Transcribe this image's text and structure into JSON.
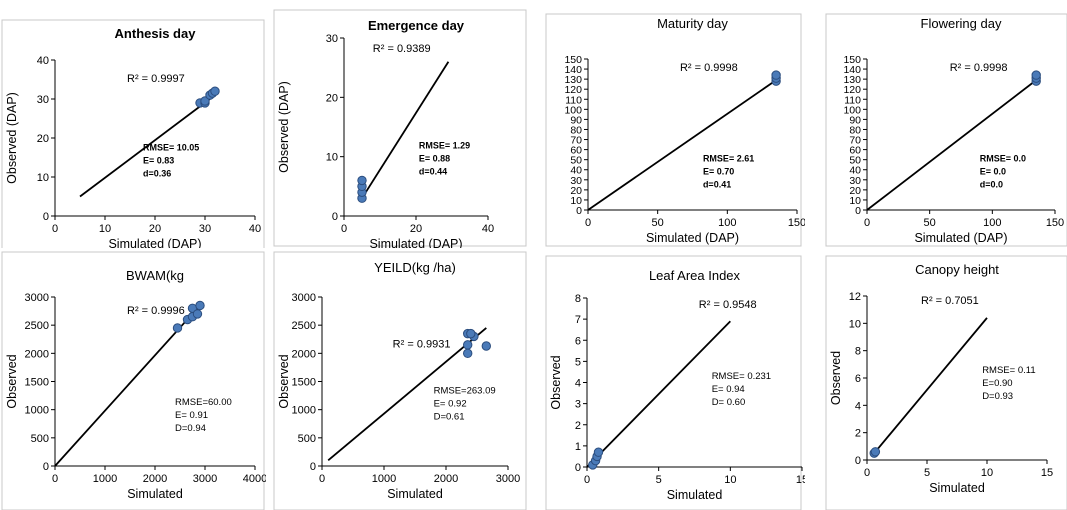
{
  "colors": {
    "point": "#4a7ab8",
    "point_edge": "#2b4d7e",
    "line": "#000000"
  },
  "chart_data": [
    {
      "type": "scatter",
      "title": "Anthesis day",
      "title_bold": true,
      "xlabel": "Simulated (DAP)",
      "ylabel": "Observed (DAP)",
      "xlim": [
        0,
        40
      ],
      "ylim": [
        0,
        40
      ],
      "xticks": [
        0,
        10,
        20,
        30,
        40
      ],
      "yticks": [
        0,
        10,
        20,
        30,
        40
      ],
      "points": [
        [
          29,
          29
        ],
        [
          30,
          29
        ],
        [
          30,
          29.5
        ],
        [
          31,
          31
        ],
        [
          31.5,
          31.5
        ],
        [
          32,
          32
        ]
      ],
      "trend": [
        [
          5,
          5
        ],
        [
          32,
          31
        ]
      ],
      "r2": "R² = 0.9997",
      "stats": [
        "RMSE= 10.05",
        "E= 0.83",
        "d=0.36"
      ],
      "stats_bold": true
    },
    {
      "type": "scatter",
      "title": "Emergence day",
      "title_bold": true,
      "xlabel": "Simulated (DAP)",
      "ylabel": "Observed (DAP)",
      "xlim": [
        0,
        40
      ],
      "ylim": [
        0,
        30
      ],
      "xticks": [
        0,
        20,
        40
      ],
      "yticks": [
        0,
        10,
        20,
        30
      ],
      "points": [
        [
          5,
          3
        ],
        [
          5,
          4
        ],
        [
          5,
          5
        ],
        [
          5,
          6
        ]
      ],
      "trend": [
        [
          5,
          3
        ],
        [
          29,
          26
        ]
      ],
      "r2": "R² = 0.9389",
      "stats": [
        "RMSE= 1.29",
        "E= 0.88",
        "d=0.44"
      ],
      "stats_bold": true
    },
    {
      "type": "scatter",
      "title": "Maturity  day",
      "title_bold": false,
      "xlabel": "Simulated (DAP)",
      "ylabel": "",
      "xlim": [
        0,
        150
      ],
      "ylim": [
        0,
        150
      ],
      "xticks": [
        0,
        50,
        100,
        150
      ],
      "yticks": [
        0,
        10,
        20,
        30,
        40,
        50,
        60,
        70,
        80,
        90,
        100,
        110,
        120,
        130,
        140,
        150
      ],
      "points": [
        [
          135,
          128
        ],
        [
          135,
          131
        ],
        [
          135,
          134
        ]
      ],
      "trend": [
        [
          0,
          0
        ],
        [
          135,
          129
        ]
      ],
      "r2": "R² = 0.9998",
      "stats": [
        "RMSE= 2.61",
        "E= 0.70",
        "d=0.41"
      ],
      "stats_bold": true
    },
    {
      "type": "scatter",
      "title": "Flowering day",
      "title_bold": false,
      "xlabel": "Simulated (DAP)",
      "ylabel": "",
      "xlim": [
        0,
        150
      ],
      "ylim": [
        0,
        150
      ],
      "xticks": [
        0,
        50,
        100,
        150
      ],
      "yticks": [
        0,
        10,
        20,
        30,
        40,
        50,
        60,
        70,
        80,
        90,
        100,
        110,
        120,
        130,
        140,
        150
      ],
      "points": [
        [
          135,
          128
        ],
        [
          135,
          131
        ],
        [
          135,
          134
        ]
      ],
      "trend": [
        [
          0,
          0
        ],
        [
          135,
          129
        ]
      ],
      "r2": "R² = 0.9998",
      "stats": [
        "RMSE= 0.0",
        "E= 0.0",
        "d=0.0"
      ],
      "stats_bold": true
    },
    {
      "type": "scatter",
      "title": "BWAM(kg",
      "title_bold": false,
      "xlabel": "Simulated",
      "ylabel": "Observed",
      "xlim": [
        0,
        4000
      ],
      "ylim": [
        0,
        3000
      ],
      "xticks": [
        0,
        1000,
        2000,
        3000,
        4000
      ],
      "yticks": [
        0,
        500,
        1000,
        1500,
        2000,
        2500,
        3000
      ],
      "points": [
        [
          2450,
          2450
        ],
        [
          2650,
          2600
        ],
        [
          2750,
          2650
        ],
        [
          2750,
          2800
        ],
        [
          2850,
          2700
        ],
        [
          2900,
          2850
        ]
      ],
      "trend": [
        [
          0,
          0
        ],
        [
          2900,
          2850
        ]
      ],
      "r2": "R² = 0.9996",
      "stats": [
        "RMSE=60.00",
        "E= 0.91",
        "D=0.94"
      ],
      "stats_bold": false
    },
    {
      "type": "scatter",
      "title": "YEILD(kg /ha)",
      "title_bold": false,
      "xlabel": "Simulated",
      "ylabel": "Observed",
      "xlim": [
        0,
        3000
      ],
      "ylim": [
        0,
        3000
      ],
      "xticks": [
        0,
        1000,
        2000,
        3000
      ],
      "yticks": [
        0,
        500,
        1000,
        1500,
        2000,
        2500,
        3000
      ],
      "points": [
        [
          2350,
          2350
        ],
        [
          2350,
          2150
        ],
        [
          2350,
          2000
        ],
        [
          2450,
          2300
        ],
        [
          2400,
          2350
        ],
        [
          2650,
          2130
        ]
      ],
      "trend": [
        [
          100,
          100
        ],
        [
          2650,
          2450
        ]
      ],
      "r2": "R² = 0.9931",
      "stats": [
        "RMSE=263.09",
        "E= 0.92",
        "D=0.61"
      ],
      "stats_bold": false
    },
    {
      "type": "scatter",
      "title": "Leaf Area Index",
      "title_bold": false,
      "xlabel": "Simulated",
      "ylabel": "Observed",
      "xlim": [
        0,
        15
      ],
      "ylim": [
        0,
        8
      ],
      "xticks": [
        0,
        5,
        10,
        15
      ],
      "yticks": [
        0,
        1,
        2,
        3,
        4,
        5,
        6,
        7,
        8
      ],
      "points": [
        [
          0.4,
          0.1
        ],
        [
          0.6,
          0.3
        ],
        [
          0.7,
          0.5
        ],
        [
          0.8,
          0.7
        ]
      ],
      "trend": [
        [
          0,
          0
        ],
        [
          10,
          6.9
        ]
      ],
      "r2": "R² = 0.9548",
      "stats": [
        "RMSE= 0.231",
        "E= 0.94",
        "D= 0.60"
      ],
      "stats_bold": false
    },
    {
      "type": "scatter",
      "title": "Canopy height",
      "title_bold": false,
      "xlabel": "Simulated",
      "ylabel": "Observed",
      "xlim": [
        0,
        15
      ],
      "ylim": [
        0,
        12
      ],
      "xticks": [
        0,
        5,
        10,
        15
      ],
      "yticks": [
        0,
        2,
        4,
        6,
        8,
        10,
        12
      ],
      "points": [
        [
          0.6,
          0.5
        ],
        [
          0.7,
          0.6
        ]
      ],
      "trend": [
        [
          0.6,
          0.5
        ],
        [
          10,
          10.4
        ]
      ],
      "r2": "R² = 0.7051",
      "stats": [
        "RMSE= 0.11",
        "E=0.90",
        "D=0.93"
      ],
      "stats_bold": false
    }
  ]
}
